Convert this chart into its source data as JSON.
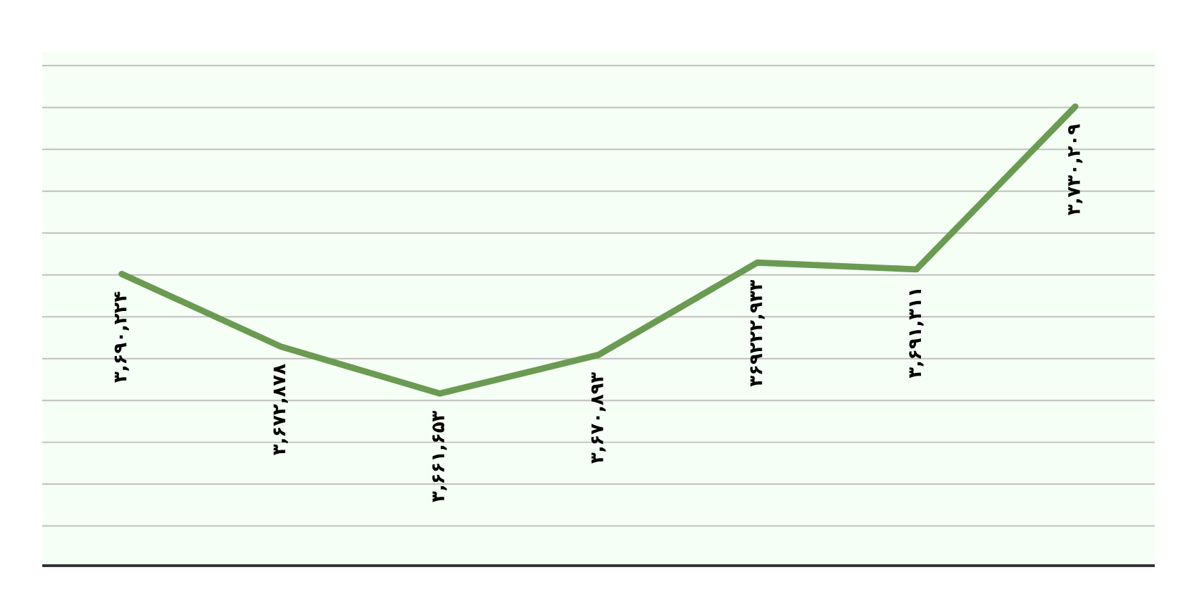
{
  "chart_data": {
    "type": "line",
    "categories": [
      null,
      null,
      null,
      null,
      null,
      null,
      null
    ],
    "series": [
      {
        "color": "#6b9a52",
        "values": [
          3690224,
          3672878,
          3661653,
          3670893,
          3692933,
          3691311,
          3730209
        ],
        "value_labels": [
          "۳,۶۹۰,۲۲۴",
          "۳,۶۷۲,۸۷۸",
          "۳,۶۶۱,۶۵۳",
          "۳,۶۷۰,۸۹۳",
          "۳۶۹۲۲۲,۹۳۳",
          "۳,۶۹۱,۳۱۱",
          "۳,۷۳۰,۲۰۹"
        ]
      }
    ],
    "grid": "y",
    "tick_labels": false,
    "marker": "none",
    "line_style": "solid"
  }
}
